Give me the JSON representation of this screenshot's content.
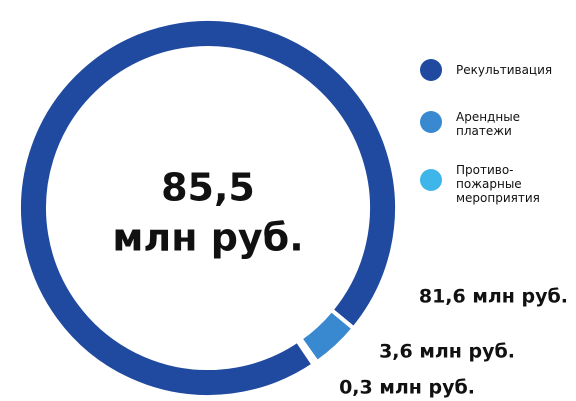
{
  "chart_data": {
    "type": "donut",
    "center_text": [
      "85,5",
      "млн руб."
    ],
    "categories": [
      "Рекультивация",
      "Арендные\nплатежи",
      "Противо-\nпожарные\nмероприятия"
    ],
    "values": [
      81.6,
      3.6,
      0.3
    ],
    "value_labels": [
      "81,6 млн руб.",
      "3,6 млн руб.",
      "0,3 млн руб."
    ],
    "colors": [
      "#1f4a9f",
      "#3889cf",
      "#3fb6e9"
    ],
    "legend": "right"
  }
}
